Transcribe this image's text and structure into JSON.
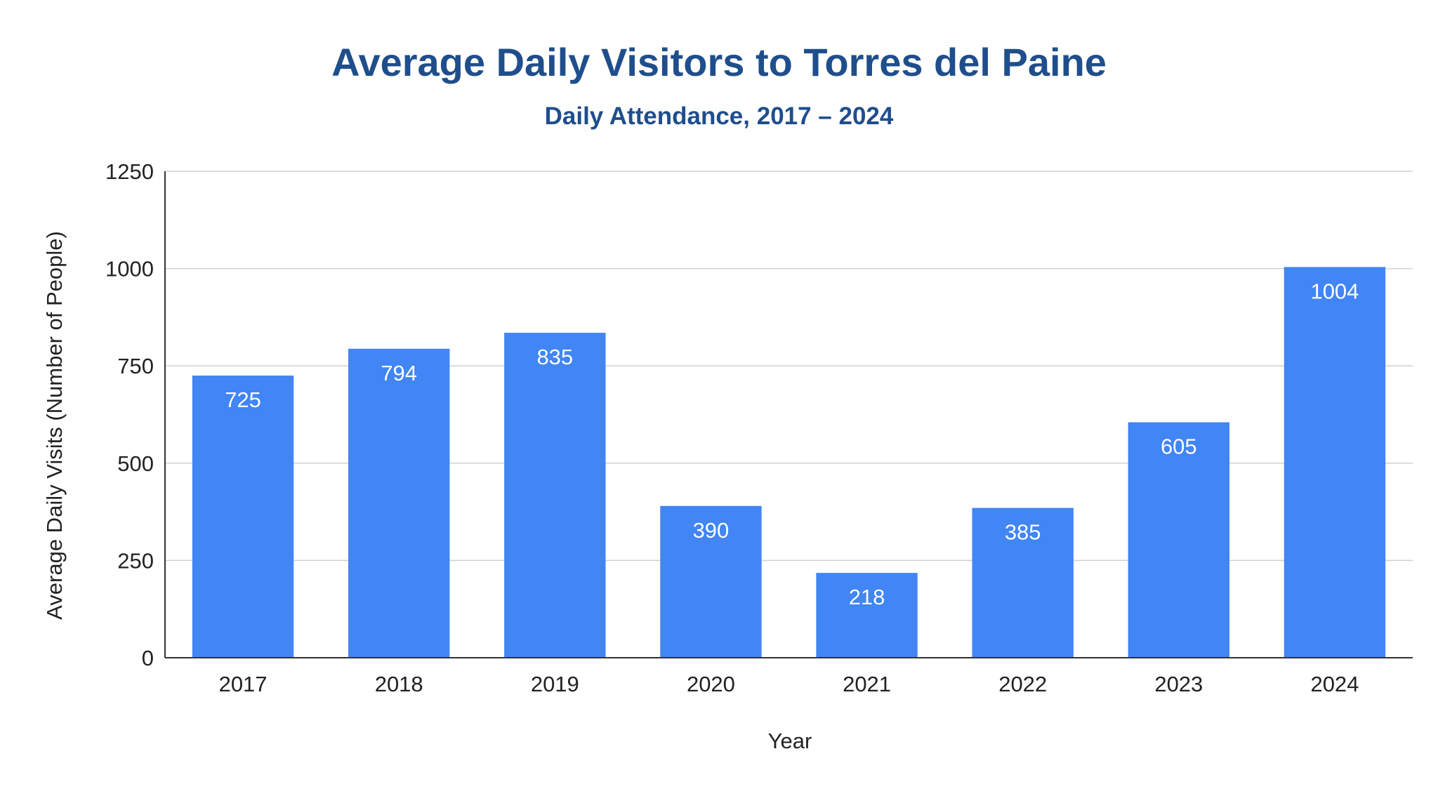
{
  "chart_data": {
    "type": "bar",
    "title": "Average Daily Visitors to Torres del Paine",
    "subtitle": "Daily Attendance, 2017 – 2024",
    "xlabel": "Year",
    "ylabel": "Average Daily Visits (Number of People)",
    "categories": [
      "2017",
      "2018",
      "2019",
      "2020",
      "2021",
      "2022",
      "2023",
      "2024"
    ],
    "values": [
      725,
      794,
      835,
      390,
      218,
      385,
      605,
      1004
    ],
    "ylim": [
      0,
      1250
    ],
    "yticks": [
      0,
      250,
      500,
      750,
      1000,
      1250
    ],
    "grid": true,
    "legend": "none",
    "bar_color": "#4285f4",
    "title_color": "#1f4e8c"
  }
}
